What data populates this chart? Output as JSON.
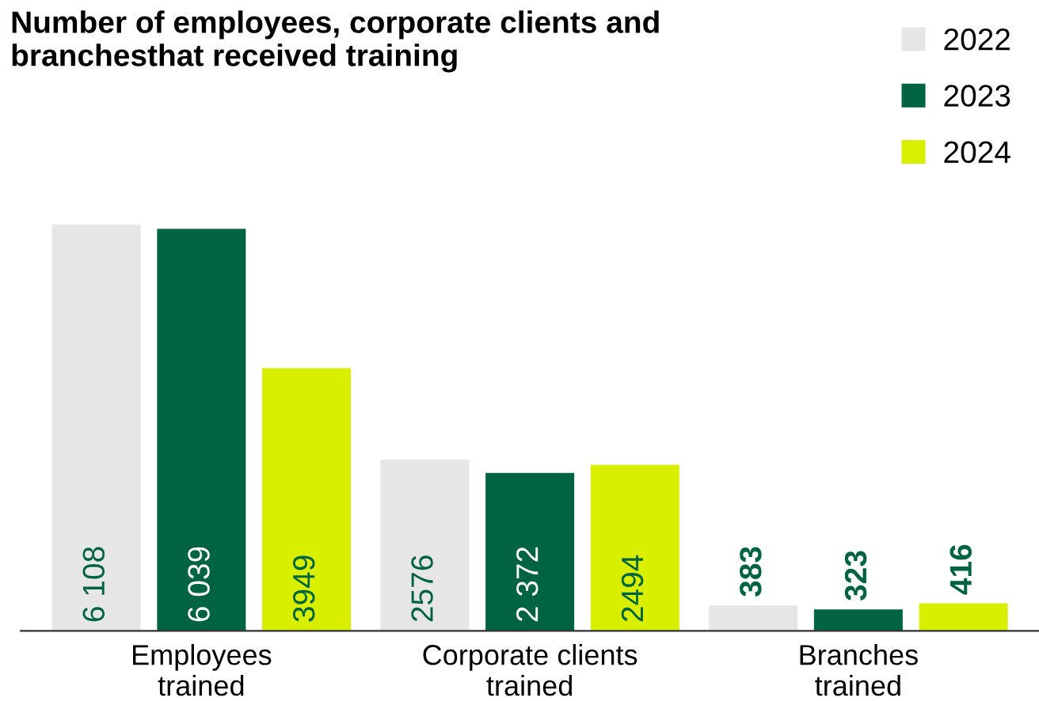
{
  "chart_data": {
    "type": "bar",
    "title": "Number of employees, corporate clients and\nbranchesthat received training",
    "categories": [
      "Employees\ntrained",
      "Corporate clients\ntrained",
      "Branches\ntrained"
    ],
    "series": [
      {
        "name": "2022",
        "color": "#e6e6e6",
        "values": [
          6108,
          2576,
          383
        ],
        "value_labels": [
          "6 108",
          "2576",
          "383"
        ]
      },
      {
        "name": "2023",
        "color": "#006341",
        "values": [
          6039,
          2372,
          323
        ],
        "value_labels": [
          "6 039",
          "2 372",
          "323"
        ]
      },
      {
        "name": "2024",
        "color": "#d9ef00",
        "values": [
          3949,
          2494,
          416
        ],
        "value_labels": [
          "3949",
          "2494",
          "416"
        ]
      }
    ],
    "legend": "top right",
    "grid": false
  }
}
